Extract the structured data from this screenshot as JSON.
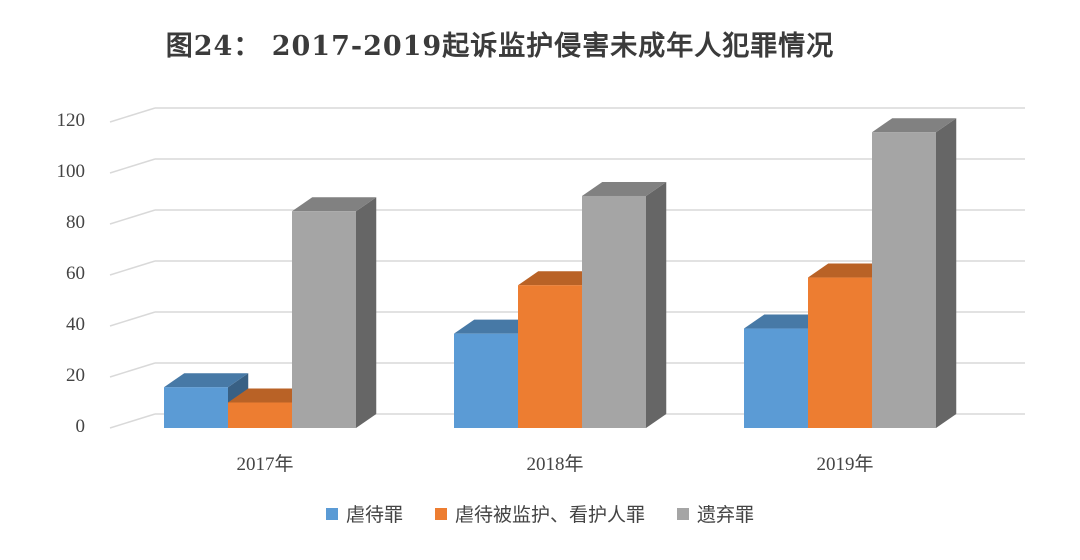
{
  "chart_data": {
    "type": "bar",
    "title": "图24： 2017-2019起诉监护侵害未成年人犯罪情况",
    "categories": [
      "2017年",
      "2018年",
      "2019年"
    ],
    "series": [
      {
        "name": "虐待罪",
        "values": [
          16,
          37,
          39
        ],
        "color": "#5B9BD5"
      },
      {
        "name": "虐待被监护、看护人罪",
        "values": [
          10,
          56,
          59
        ],
        "color": "#ED7D31"
      },
      {
        "name": "遗弃罪",
        "values": [
          85,
          91,
          116
        ],
        "color": "#A5A5A5"
      }
    ],
    "ylim": [
      0,
      120
    ],
    "yticks": [
      0,
      20,
      40,
      60,
      80,
      100,
      120
    ],
    "grid": true,
    "legend_position": "bottom",
    "style": "3d-column"
  }
}
